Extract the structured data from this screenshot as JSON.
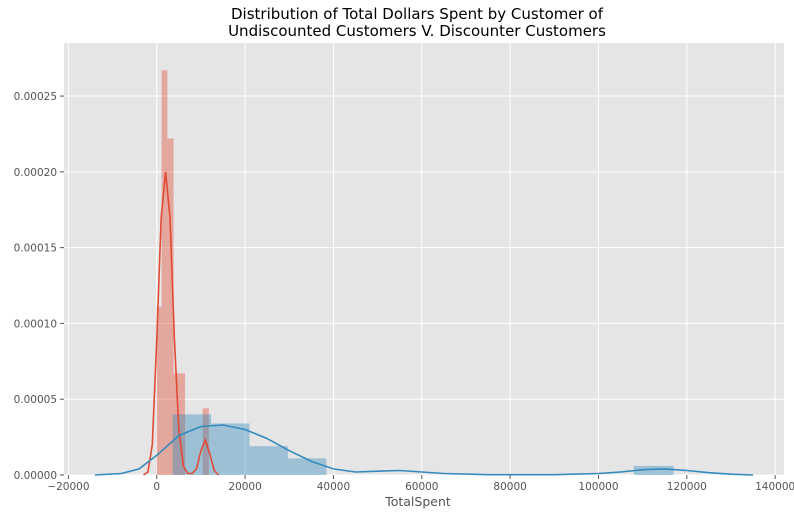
{
  "chart_data": {
    "type": "histogram+kde",
    "title_line1": "Distribution of Total Dollars Spent by Customer of",
    "title_line2": "Undiscounted Customers V. Discounter Customers",
    "xlabel": "TotalSpent",
    "ylabel": "",
    "xlim": [
      -21000,
      142000
    ],
    "ylim": [
      0,
      0.000285
    ],
    "xticks": [
      -20000,
      0,
      20000,
      40000,
      60000,
      80000,
      100000,
      120000,
      140000
    ],
    "xtick_labels": [
      "−20000",
      "0",
      "20000",
      "40000",
      "60000",
      "80000",
      "100000",
      "120000",
      "140000"
    ],
    "yticks": [
      0,
      5e-05,
      0.0001,
      0.00015,
      0.0002,
      0.00025
    ],
    "ytick_labels": [
      "0.00000",
      "0.00005",
      "0.00010",
      "0.00015",
      "0.00020",
      "0.00025"
    ],
    "grid": true,
    "legend": "none",
    "background": "#e5e5e5",
    "series": [
      {
        "color": "#e24a33",
        "bins": [
          {
            "x0": 0,
            "x1": 1100,
            "h": 0.000111
          },
          {
            "x0": 1100,
            "x2": 0,
            "x1": 2400,
            "h": 0.000267
          },
          {
            "x0": 2400,
            "x1": 3800,
            "h": 0.000222
          },
          {
            "x0": 3800,
            "x1": 6400,
            "h": 6.7e-05
          },
          {
            "x0": 6400,
            "x1": 7800,
            "h": 0.0
          },
          {
            "x0": 7800,
            "x1": 9100,
            "h": 0.0
          },
          {
            "x0": 9100,
            "x1": 10400,
            "h": 0.0
          },
          {
            "x0": 10400,
            "x1": 11800,
            "h": 4.4e-05
          }
        ],
        "kde": [
          [
            -3000,
            0
          ],
          [
            -2000,
            2e-06
          ],
          [
            -1000,
            2e-05
          ],
          [
            0,
            9e-05
          ],
          [
            1000,
            0.00017
          ],
          [
            2000,
            0.0002
          ],
          [
            3000,
            0.00017
          ],
          [
            4000,
            9e-05
          ],
          [
            5000,
            3e-05
          ],
          [
            6000,
            6e-06
          ],
          [
            7000,
            1e-06
          ],
          [
            8000,
            1e-06
          ],
          [
            9000,
            4e-06
          ],
          [
            10000,
            1.6e-05
          ],
          [
            11000,
            2.3e-05
          ],
          [
            12000,
            1.4e-05
          ],
          [
            13000,
            3e-06
          ],
          [
            14000,
            0
          ]
        ]
      },
      {
        "color": "#348abd",
        "bins": [
          {
            "x0": 3600,
            "x1": 12300,
            "h": 4e-05
          },
          {
            "x0": 12300,
            "x1": 21000,
            "h": 3.4e-05
          },
          {
            "x0": 21000,
            "x1": 29700,
            "h": 1.9e-05
          },
          {
            "x0": 29700,
            "x1": 38400,
            "h": 1.1e-05
          },
          {
            "x0": 108000,
            "x1": 117000,
            "h": 6e-06
          }
        ],
        "kde": [
          [
            -14000,
            0
          ],
          [
            -8000,
            1e-06
          ],
          [
            -4000,
            4e-06
          ],
          [
            0,
            1.3e-05
          ],
          [
            5000,
            2.6e-05
          ],
          [
            10000,
            3.2e-05
          ],
          [
            15000,
            3.3e-05
          ],
          [
            20000,
            3e-05
          ],
          [
            25000,
            2.4e-05
          ],
          [
            30000,
            1.6e-05
          ],
          [
            35000,
            9e-06
          ],
          [
            40000,
            4e-06
          ],
          [
            45000,
            2e-06
          ],
          [
            50000,
            2.5e-06
          ],
          [
            55000,
            3e-06
          ],
          [
            60000,
            2e-06
          ],
          [
            65000,
            1e-06
          ],
          [
            75000,
            2e-07
          ],
          [
            90000,
            2e-07
          ],
          [
            100000,
            1e-06
          ],
          [
            105000,
            2e-06
          ],
          [
            110000,
            3.5e-06
          ],
          [
            115000,
            4e-06
          ],
          [
            120000,
            3e-06
          ],
          [
            125000,
            1.5e-06
          ],
          [
            130000,
            5e-07
          ],
          [
            135000,
            0
          ]
        ]
      }
    ]
  }
}
